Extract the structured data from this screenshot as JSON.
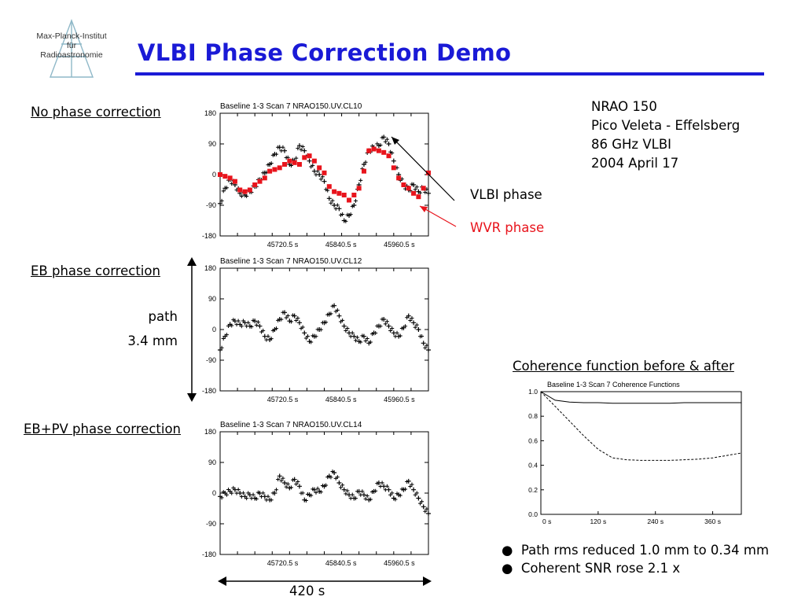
{
  "logo": {
    "lines": [
      "Max-Planck-Institut",
      "für",
      "Radioastronomie"
    ]
  },
  "title": "VLBI Phase Correction Demo",
  "labels": {
    "no_correction": "No phase correction",
    "eb_correction": "EB phase correction",
    "ebpv_correction": "EB+PV phase correction",
    "path": "path",
    "path_value": "3.4 mm",
    "duration": "420 s",
    "coherence_heading": "Coherence function before & after",
    "vlbi_phase": "VLBI phase",
    "wvr_phase": "WVR phase"
  },
  "info": [
    "NRAO 150",
    "Pico Veleta - Effelsberg",
    "86 GHz VLBI",
    "2004 April 17"
  ],
  "bullets": [
    "Path rms reduced 1.0 mm to 0.34 mm",
    "Coherent SNR rose 2.1 x"
  ],
  "colors": {
    "title": "#1a1ad6",
    "wvr": "#e8141c",
    "vlbi": "#000000"
  },
  "chart_data": [
    {
      "type": "scatter",
      "title": "Baseline 1-3    Scan 7    NRAO150.UV.CL10",
      "ylim": [
        -180,
        180
      ],
      "yticks": [
        "180",
        "90",
        "0",
        "-90",
        "-180"
      ],
      "xtick_labels": [
        "45720.5 s",
        "45840.5 s",
        "45960.5 s"
      ],
      "series": [
        {
          "name": "VLBI phase",
          "color": "#000000",
          "x": [
            0,
            10,
            20,
            30,
            40,
            50,
            60,
            70,
            80,
            90,
            100,
            110,
            120,
            130,
            140,
            150,
            160,
            170,
            180,
            190,
            200,
            210,
            220,
            230,
            240,
            250,
            260,
            270,
            280,
            290,
            300,
            310,
            320,
            330,
            340,
            350,
            360,
            370,
            380,
            390,
            400,
            410,
            420
          ],
          "y": [
            -85,
            -40,
            -15,
            -30,
            -55,
            -60,
            -50,
            -35,
            -15,
            5,
            30,
            60,
            80,
            70,
            30,
            40,
            85,
            70,
            40,
            10,
            0,
            -20,
            -70,
            -90,
            -100,
            -135,
            -120,
            -90,
            -30,
            30,
            70,
            80,
            85,
            110,
            90,
            40,
            0,
            -30,
            -45,
            -30,
            -50,
            -40,
            -55
          ]
        },
        {
          "name": "WVR phase",
          "color": "#e8141c",
          "x": [
            0,
            10,
            20,
            30,
            40,
            50,
            60,
            70,
            80,
            90,
            100,
            110,
            120,
            130,
            140,
            150,
            160,
            170,
            180,
            190,
            200,
            210,
            220,
            230,
            240,
            250,
            260,
            270,
            280,
            290,
            300,
            310,
            320,
            330,
            340,
            350,
            360,
            370,
            380,
            390,
            400,
            410,
            420
          ],
          "y": [
            0,
            -5,
            -10,
            -20,
            -45,
            -50,
            -45,
            -30,
            -20,
            -10,
            10,
            15,
            20,
            30,
            40,
            35,
            30,
            50,
            55,
            40,
            20,
            5,
            -35,
            -50,
            -55,
            -60,
            -75,
            -60,
            -40,
            10,
            70,
            75,
            70,
            65,
            55,
            20,
            -10,
            -30,
            -40,
            -55,
            -65,
            -40,
            5
          ]
        }
      ]
    },
    {
      "type": "scatter",
      "title": "Baseline 1-3    Scan 7    NRAO150.UV.CL12",
      "ylim": [
        -180,
        180
      ],
      "yticks": [
        "180",
        "90",
        "0",
        "-90",
        "-180"
      ],
      "xtick_labels": [
        "45720.5 s",
        "45840.5 s",
        "45960.5 s"
      ],
      "series": [
        {
          "name": "VLBI phase",
          "color": "#000000",
          "x": [
            0,
            10,
            20,
            30,
            40,
            50,
            60,
            70,
            80,
            90,
            100,
            110,
            120,
            130,
            140,
            150,
            160,
            170,
            180,
            190,
            200,
            210,
            220,
            230,
            240,
            250,
            260,
            270,
            280,
            290,
            300,
            310,
            320,
            330,
            340,
            350,
            360,
            370,
            380,
            390,
            400,
            410,
            420
          ],
          "y": [
            -60,
            -20,
            15,
            25,
            15,
            20,
            10,
            25,
            10,
            -20,
            -30,
            0,
            30,
            50,
            25,
            40,
            20,
            -10,
            -35,
            -20,
            0,
            20,
            45,
            70,
            40,
            10,
            -10,
            -20,
            -35,
            -20,
            -40,
            -10,
            10,
            30,
            10,
            -10,
            -20,
            5,
            40,
            20,
            0,
            -40,
            -60
          ]
        }
      ]
    },
    {
      "type": "scatter",
      "title": "Baseline 1-3    Scan 7    NRAO150.UV.CL14",
      "ylim": [
        -180,
        180
      ],
      "yticks": [
        "180",
        "90",
        "0",
        "-90",
        "-180"
      ],
      "xtick_labels": [
        "45720.5 s",
        "45840.5 s",
        "45960.5 s"
      ],
      "series": [
        {
          "name": "VLBI phase",
          "color": "#000000",
          "x": [
            0,
            10,
            20,
            30,
            40,
            50,
            60,
            70,
            80,
            90,
            100,
            110,
            120,
            130,
            140,
            150,
            160,
            170,
            180,
            190,
            200,
            210,
            220,
            230,
            240,
            250,
            260,
            270,
            280,
            290,
            300,
            310,
            320,
            330,
            340,
            350,
            360,
            370,
            380,
            390,
            400,
            410,
            420
          ],
          "y": [
            -10,
            0,
            5,
            10,
            0,
            -10,
            -5,
            -15,
            0,
            -10,
            -20,
            0,
            50,
            30,
            15,
            40,
            20,
            -20,
            -5,
            10,
            5,
            20,
            50,
            60,
            30,
            10,
            -5,
            -15,
            5,
            -5,
            -20,
            5,
            30,
            20,
            10,
            -15,
            -5,
            10,
            35,
            10,
            -15,
            -40,
            -60
          ]
        }
      ]
    },
    {
      "type": "line",
      "title": "Baseline 1-3    Scan 7    Coherence Functions",
      "ylim": [
        0,
        1
      ],
      "yticks": [
        "1.0",
        "0.8",
        "0.6",
        "0.4",
        "0.2",
        "0.0"
      ],
      "xlim": [
        0,
        420
      ],
      "xticks": [
        0,
        120,
        240,
        360
      ],
      "xtick_labels": [
        "0 s",
        "120 s",
        "240 s",
        "360 s"
      ],
      "series": [
        {
          "name": "after",
          "style": "solid",
          "x": [
            0,
            30,
            60,
            90,
            120,
            150,
            180,
            210,
            240,
            270,
            300,
            330,
            360,
            390,
            420
          ],
          "y": [
            1.0,
            0.93,
            0.915,
            0.91,
            0.91,
            0.905,
            0.905,
            0.905,
            0.905,
            0.905,
            0.91,
            0.91,
            0.91,
            0.91,
            0.91
          ]
        },
        {
          "name": "before",
          "style": "dashed",
          "x": [
            0,
            30,
            60,
            90,
            120,
            150,
            180,
            210,
            240,
            270,
            300,
            330,
            360,
            390,
            420
          ],
          "y": [
            1.0,
            0.88,
            0.76,
            0.64,
            0.53,
            0.46,
            0.445,
            0.44,
            0.44,
            0.44,
            0.445,
            0.45,
            0.46,
            0.48,
            0.5
          ]
        }
      ]
    }
  ]
}
